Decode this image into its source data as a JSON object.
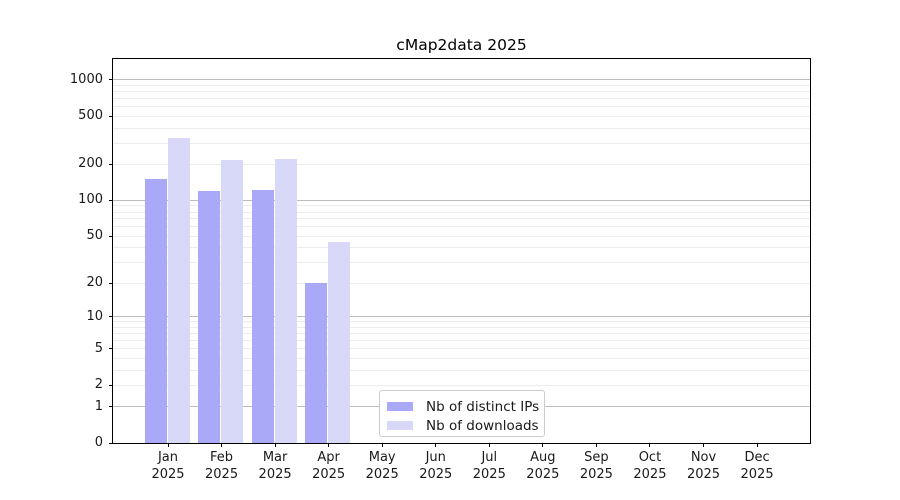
{
  "chart_data": {
    "type": "bar",
    "title": "cMap2data 2025",
    "categories": [
      "Jan",
      "Feb",
      "Mar",
      "Apr",
      "May",
      "Jun",
      "Jul",
      "Aug",
      "Sep",
      "Oct",
      "Nov",
      "Dec"
    ],
    "x_year_label": "2025",
    "series": [
      {
        "name": "Nb of distinct IPs",
        "color": "#a9a9f7",
        "values": [
          150,
          119,
          122,
          20,
          0,
          0,
          0,
          0,
          0,
          0,
          0,
          0
        ]
      },
      {
        "name": "Nb of downloads",
        "color": "#d8d8f8",
        "values": [
          330,
          218,
          223,
          45,
          0,
          0,
          0,
          0,
          0,
          0,
          0,
          0
        ]
      }
    ],
    "y_scale": "log10(1+x)",
    "y_ticks": [
      0,
      1,
      2,
      5,
      10,
      20,
      50,
      100,
      200,
      500,
      1000
    ],
    "ylim": [
      0,
      1490
    ],
    "grid": "horizontal",
    "legend_position": "lower-center-inside"
  },
  "colors": {
    "background": "#ffffff",
    "axis": "#000000",
    "major_grid": "#bdbdbd",
    "minor_grid": "#ececec",
    "legend_border": "#cccccc",
    "bar_distinct_ips": "#a9a9f7",
    "bar_downloads": "#d8d8f8"
  }
}
